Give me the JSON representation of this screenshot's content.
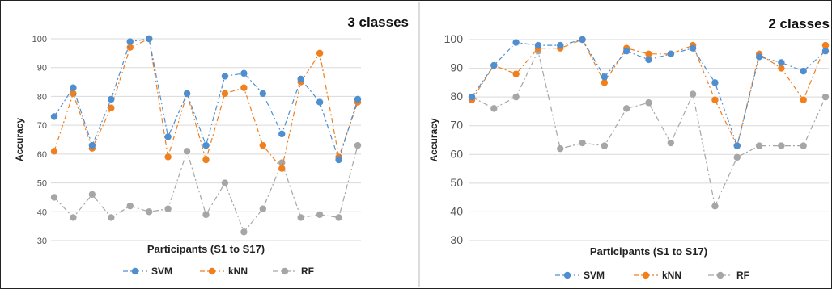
{
  "chart_data": [
    {
      "type": "line",
      "title": "3 classes",
      "xlabel": "Participants (S1 to S17)",
      "ylabel": "Accuracy",
      "ylim": [
        30,
        100
      ],
      "yticks": [
        30,
        40,
        50,
        60,
        70,
        80,
        90,
        100
      ],
      "x": [
        1,
        2,
        3,
        4,
        5,
        6,
        7,
        8,
        9,
        10,
        11,
        12,
        13,
        14,
        15,
        16,
        17
      ],
      "grid": true,
      "legend": "bottom",
      "series": [
        {
          "name": "SVM",
          "color": "#4f8fd0",
          "line": "dash-dot",
          "values": [
            73,
            83,
            63,
            79,
            99,
            100,
            66,
            81,
            63,
            87,
            88,
            81,
            67,
            86,
            78,
            58,
            79
          ]
        },
        {
          "name": "kNN",
          "color": "#f07f1e",
          "line": "dash-dot",
          "values": [
            61,
            81,
            62,
            76,
            97,
            100,
            59,
            81,
            58,
            81,
            83,
            63,
            55,
            85,
            95,
            59,
            78
          ]
        },
        {
          "name": "RF",
          "color": "#a6a6a6",
          "line": "dash-dot",
          "values": [
            45,
            38,
            46,
            38,
            42,
            40,
            41,
            61,
            39,
            50,
            33,
            41,
            57,
            38,
            39,
            38,
            63
          ]
        }
      ]
    },
    {
      "type": "line",
      "title": "2 classes",
      "xlabel": "Participants (S1 to S17)",
      "ylabel": "Accuracy",
      "ylim": [
        30,
        100
      ],
      "yticks": [
        30,
        40,
        50,
        60,
        70,
        80,
        90,
        100
      ],
      "x": [
        1,
        2,
        3,
        4,
        5,
        6,
        7,
        8,
        9,
        10,
        11,
        12,
        13,
        14,
        15,
        16,
        17
      ],
      "grid": true,
      "legend": "bottom",
      "series": [
        {
          "name": "SVM",
          "color": "#4f8fd0",
          "line": "dash-dot",
          "values": [
            80,
            91,
            99,
            98,
            98,
            100,
            87,
            96,
            93,
            95,
            97,
            85,
            63,
            94,
            92,
            89,
            96
          ]
        },
        {
          "name": "kNN",
          "color": "#f07f1e",
          "line": "dash-dot",
          "values": [
            79,
            91,
            88,
            97,
            97,
            100,
            85,
            97,
            95,
            95,
            98,
            79,
            63,
            95,
            90,
            79,
            98
          ]
        },
        {
          "name": "RF",
          "color": "#a6a6a6",
          "line": "dash-dot",
          "values": [
            80,
            76,
            80,
            96,
            62,
            64,
            63,
            76,
            78,
            64,
            81,
            42,
            59,
            63,
            63,
            63,
            80
          ]
        }
      ]
    }
  ]
}
